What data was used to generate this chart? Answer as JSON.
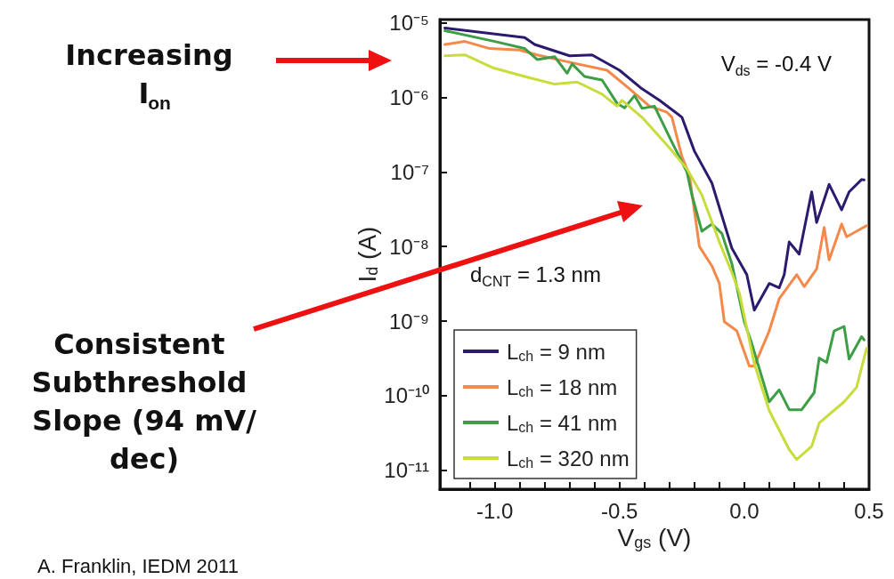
{
  "chart_data": {
    "type": "line",
    "xlabel": "V$_{gs}$ (V)",
    "ylabel": "I$_{d}$ (A)",
    "xlim": [
      -1.22,
      0.5
    ],
    "xticks": [
      {
        "value": -1.1,
        "label": null
      },
      {
        "value": -1,
        "label": "-1.0"
      },
      {
        "value": -0.9,
        "label": null
      },
      {
        "value": -0.8,
        "label": null
      },
      {
        "value": -0.7,
        "label": null
      },
      {
        "value": -0.6,
        "label": null
      },
      -0.5,
      {
        "value": -0.4,
        "label": null
      },
      {
        "value": -0.3,
        "label": null
      },
      {
        "value": -0.2,
        "label": null
      },
      {
        "value": -0.1,
        "label": null
      },
      {
        "value": 0,
        "label": "0.0"
      },
      {
        "value": 0.1,
        "label": null
      },
      {
        "value": 0.2,
        "label": null
      },
      {
        "value": 0.3,
        "label": null
      },
      {
        "value": 0.4,
        "label": null
      },
      0.5
    ],
    "ylim": [
      5.6e-12,
      1.1e-05
    ],
    "yticks": [
      {
        "value": 1e-11,
        "label": "10⁻¹¹"
      },
      {
        "value": 1e-10,
        "label": "10⁻¹⁰"
      },
      {
        "value": 1e-09,
        "label": "10⁻⁹"
      },
      {
        "value": 1e-08,
        "label": "10⁻⁸"
      },
      {
        "value": 1e-07,
        "label": "10⁻⁷"
      },
      {
        "value": 1e-06,
        "label": "10⁻⁶"
      },
      {
        "value": 1e-05,
        "label": "10⁻⁵"
      }
    ],
    "log": "y",
    "grid": false,
    "legend": "bottom left",
    "marker": "none",
    "line_style": "solid",
    "series": [
      {
        "name": "L$_{ch}$ = 9 nm",
        "color": "#2b1a6e",
        "x": [
          -1.2,
          -0.88,
          -0.84,
          -0.7,
          -0.61,
          -0.5,
          -0.41,
          -0.34,
          -0.25,
          -0.2,
          -0.13,
          -0.05,
          0.01,
          0.04,
          0.1,
          0.14,
          0.16,
          0.18,
          0.22,
          0.27,
          0.29,
          0.34,
          0.39,
          0.42,
          0.47,
          0.48
        ],
        "values": [
          8.5e-06,
          6.3e-06,
          5.1e-06,
          3.6e-06,
          3.7e-06,
          2.3e-06,
          1.3e-06,
          9.1e-07,
          5.4e-07,
          1.9e-07,
          7.1e-08,
          9.5e-09,
          4.2e-09,
          1.4e-09,
          3.2e-09,
          2.8e-09,
          4.2e-09,
          1.15e-08,
          7.9e-09,
          5.4e-08,
          2.1e-08,
          6.8e-08,
          3.1e-08,
          5.4e-08,
          7.9e-08,
          7.8e-08
        ]
      },
      {
        "name": "L$_{ch}$ = 18 nm",
        "color": "#f4894a",
        "x": [
          -1.2,
          -1.12,
          -1.02,
          -0.9,
          -0.83,
          -0.71,
          -0.55,
          -0.46,
          -0.38,
          -0.31,
          -0.29,
          -0.25,
          -0.22,
          -0.18,
          -0.13,
          -0.1,
          -0.08,
          -0.03,
          0.02,
          0.04,
          0.1,
          0.14,
          0.21,
          0.24,
          0.29,
          0.32,
          0.34,
          0.39,
          0.41,
          0.49
        ],
        "values": [
          5.1e-06,
          5.6e-06,
          4.5e-06,
          4.3e-06,
          3.7e-06,
          3e-06,
          2.3e-06,
          1.3e-06,
          7.6e-07,
          6.3e-07,
          5.4e-07,
          1.6e-07,
          9.1e-08,
          1e-08,
          5.5e-09,
          3.2e-09,
          9.8e-10,
          7.4e-10,
          2.5e-10,
          2.5e-10,
          7.4e-10,
          2e-09,
          4.2e-09,
          2.9e-09,
          5e-09,
          1.8e-08,
          6.6e-09,
          2e-08,
          1.35e-08,
          1.9e-08
        ]
      },
      {
        "name": "L$_{ch}$ = 41 nm",
        "color": "#3d9e45",
        "x": [
          -1.2,
          -1.0,
          -0.88,
          -0.83,
          -0.76,
          -0.71,
          -0.69,
          -0.64,
          -0.57,
          -0.51,
          -0.48,
          -0.44,
          -0.41,
          -0.36,
          -0.29,
          -0.23,
          -0.21,
          -0.17,
          -0.13,
          -0.09,
          -0.05,
          0.0,
          0.03,
          0.1,
          0.14,
          0.18,
          0.23,
          0.28,
          0.3,
          0.33,
          0.36,
          0.4,
          0.42,
          0.47,
          0.48
        ],
        "values": [
          7.8e-06,
          5.6e-06,
          4.5e-06,
          3.2e-06,
          3.5e-06,
          2.1e-06,
          2.8e-06,
          1.9e-06,
          1.7e-06,
          8.3e-07,
          7.2e-07,
          1.05e-06,
          7.1e-07,
          7.6e-07,
          2.5e-07,
          1e-07,
          4.9e-08,
          1.6e-08,
          2e-08,
          1.5e-08,
          5.9e-09,
          9.8e-10,
          5e-10,
          8.3e-11,
          1.2e-10,
          6.5e-11,
          6.5e-11,
          1.1e-10,
          3.2e-10,
          2.8e-10,
          7.4e-10,
          8.5e-10,
          3.1e-10,
          6.2e-10,
          5.6e-10
        ]
      },
      {
        "name": "L$_{ch}$ = 320 nm",
        "color": "#c8dc3c",
        "x": [
          -1.2,
          -1.12,
          -1.01,
          -0.88,
          -0.76,
          -0.67,
          -0.57,
          -0.51,
          -0.49,
          -0.41,
          -0.3,
          -0.23,
          -0.17,
          -0.1,
          -0.05,
          -0.02,
          0.04,
          0.1,
          0.18,
          0.21,
          0.27,
          0.3,
          0.4,
          0.45,
          0.49
        ],
        "values": [
          3.6e-06,
          3.7e-06,
          2.5e-06,
          1.9e-06,
          1.5e-06,
          1.6e-06,
          1.1e-06,
          7.6e-07,
          9.1e-07,
          5.4e-07,
          2.1e-07,
          1.1e-07,
          4.9e-08,
          1.15e-08,
          4.5e-09,
          2.4e-09,
          2.7e-10,
          6.3e-11,
          1.9e-11,
          1.4e-11,
          2.1e-11,
          4.3e-11,
          8.3e-11,
          1.3e-10,
          4.3e-10
        ]
      }
    ],
    "annotations": [
      "V$_{ds}$ = -0.4 V",
      "d$_{CNT}$ = 1.3 nm",
      "Increasing I$_{on}$",
      "Consistent Subthreshold Slope (94 mV/dec)",
      "A. Franklin, IEDM 2011"
    ]
  }
}
